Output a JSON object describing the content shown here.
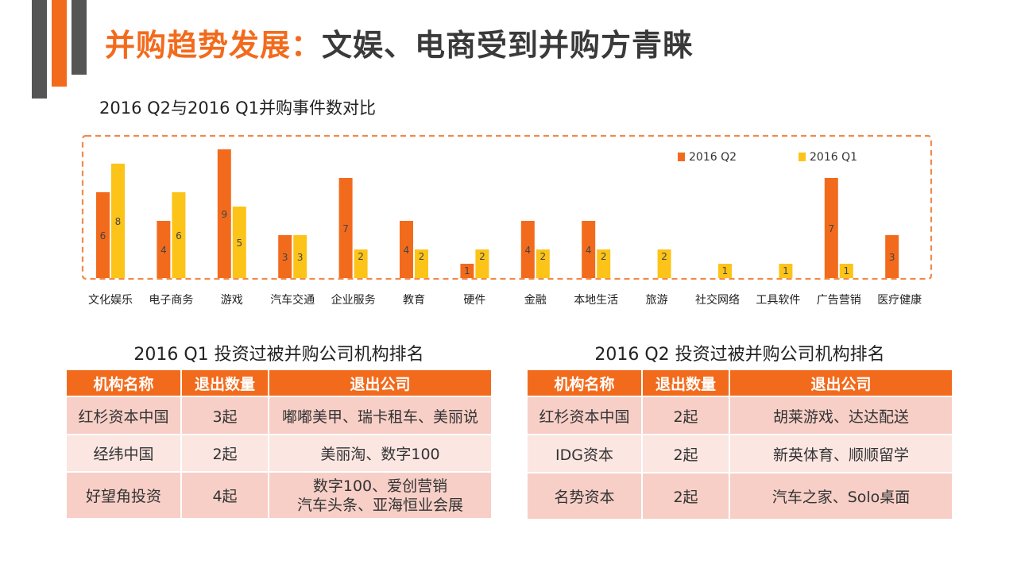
{
  "page_title": {
    "part1": "并购趋势发展：",
    "part2": "文娱、电商受到并购方青睐"
  },
  "colors": {
    "accent": "#f26b1d",
    "q2": "#f26b1d",
    "q1": "#fcc419",
    "dark_bar": "#555555",
    "row_odd": "#f7cfc7",
    "row_even": "#fbe6e2"
  },
  "chart_data": {
    "type": "bar",
    "title": "2016 Q2与2016 Q1并购事件数对比",
    "categories": [
      "文化娱乐",
      "电子商务",
      "游戏",
      "汽车交通",
      "企业服务",
      "教育",
      "硬件",
      "金融",
      "本地生活",
      "旅游",
      "社交网络",
      "工具软件",
      "广告营销",
      "医疗健康"
    ],
    "series": [
      {
        "name": "2016 Q2",
        "values": [
          6,
          4,
          9,
          3,
          7,
          4,
          1,
          4,
          4,
          null,
          null,
          null,
          7,
          3
        ]
      },
      {
        "name": "2016 Q1",
        "values": [
          8,
          6,
          5,
          3,
          2,
          2,
          2,
          2,
          2,
          2,
          1,
          1,
          1,
          null
        ]
      }
    ],
    "ylim": [
      0,
      9
    ],
    "legend": "top-right",
    "grid": false
  },
  "table_q1": {
    "title": "2016 Q1 投资过被并购公司机构排名",
    "headers": [
      "机构名称",
      "退出数量",
      "退出公司"
    ],
    "rows": [
      {
        "name": "红杉资本中国",
        "count": "3起",
        "companies": "嘟嘟美甲、瑞卡租车、美丽说"
      },
      {
        "name": "经纬中国",
        "count": "2起",
        "companies": "美丽淘、数字100"
      },
      {
        "name": "好望角投资",
        "count": "4起",
        "companies": "数字100、爱创营销",
        "companies2": "汽车头条、亚海恒业会展"
      }
    ]
  },
  "table_q2": {
    "title": "2016 Q2 投资过被并购公司机构排名",
    "headers": [
      "机构名称",
      "退出数量",
      "退出公司"
    ],
    "rows": [
      {
        "name": "红杉资本中国",
        "count": "2起",
        "companies": "胡莱游戏、达达配送"
      },
      {
        "name": "IDG资本",
        "count": "2起",
        "companies": "新英体育、顺顺留学"
      },
      {
        "name": "名势资本",
        "count": "2起",
        "companies": "汽车之家、Solo桌面"
      }
    ]
  }
}
